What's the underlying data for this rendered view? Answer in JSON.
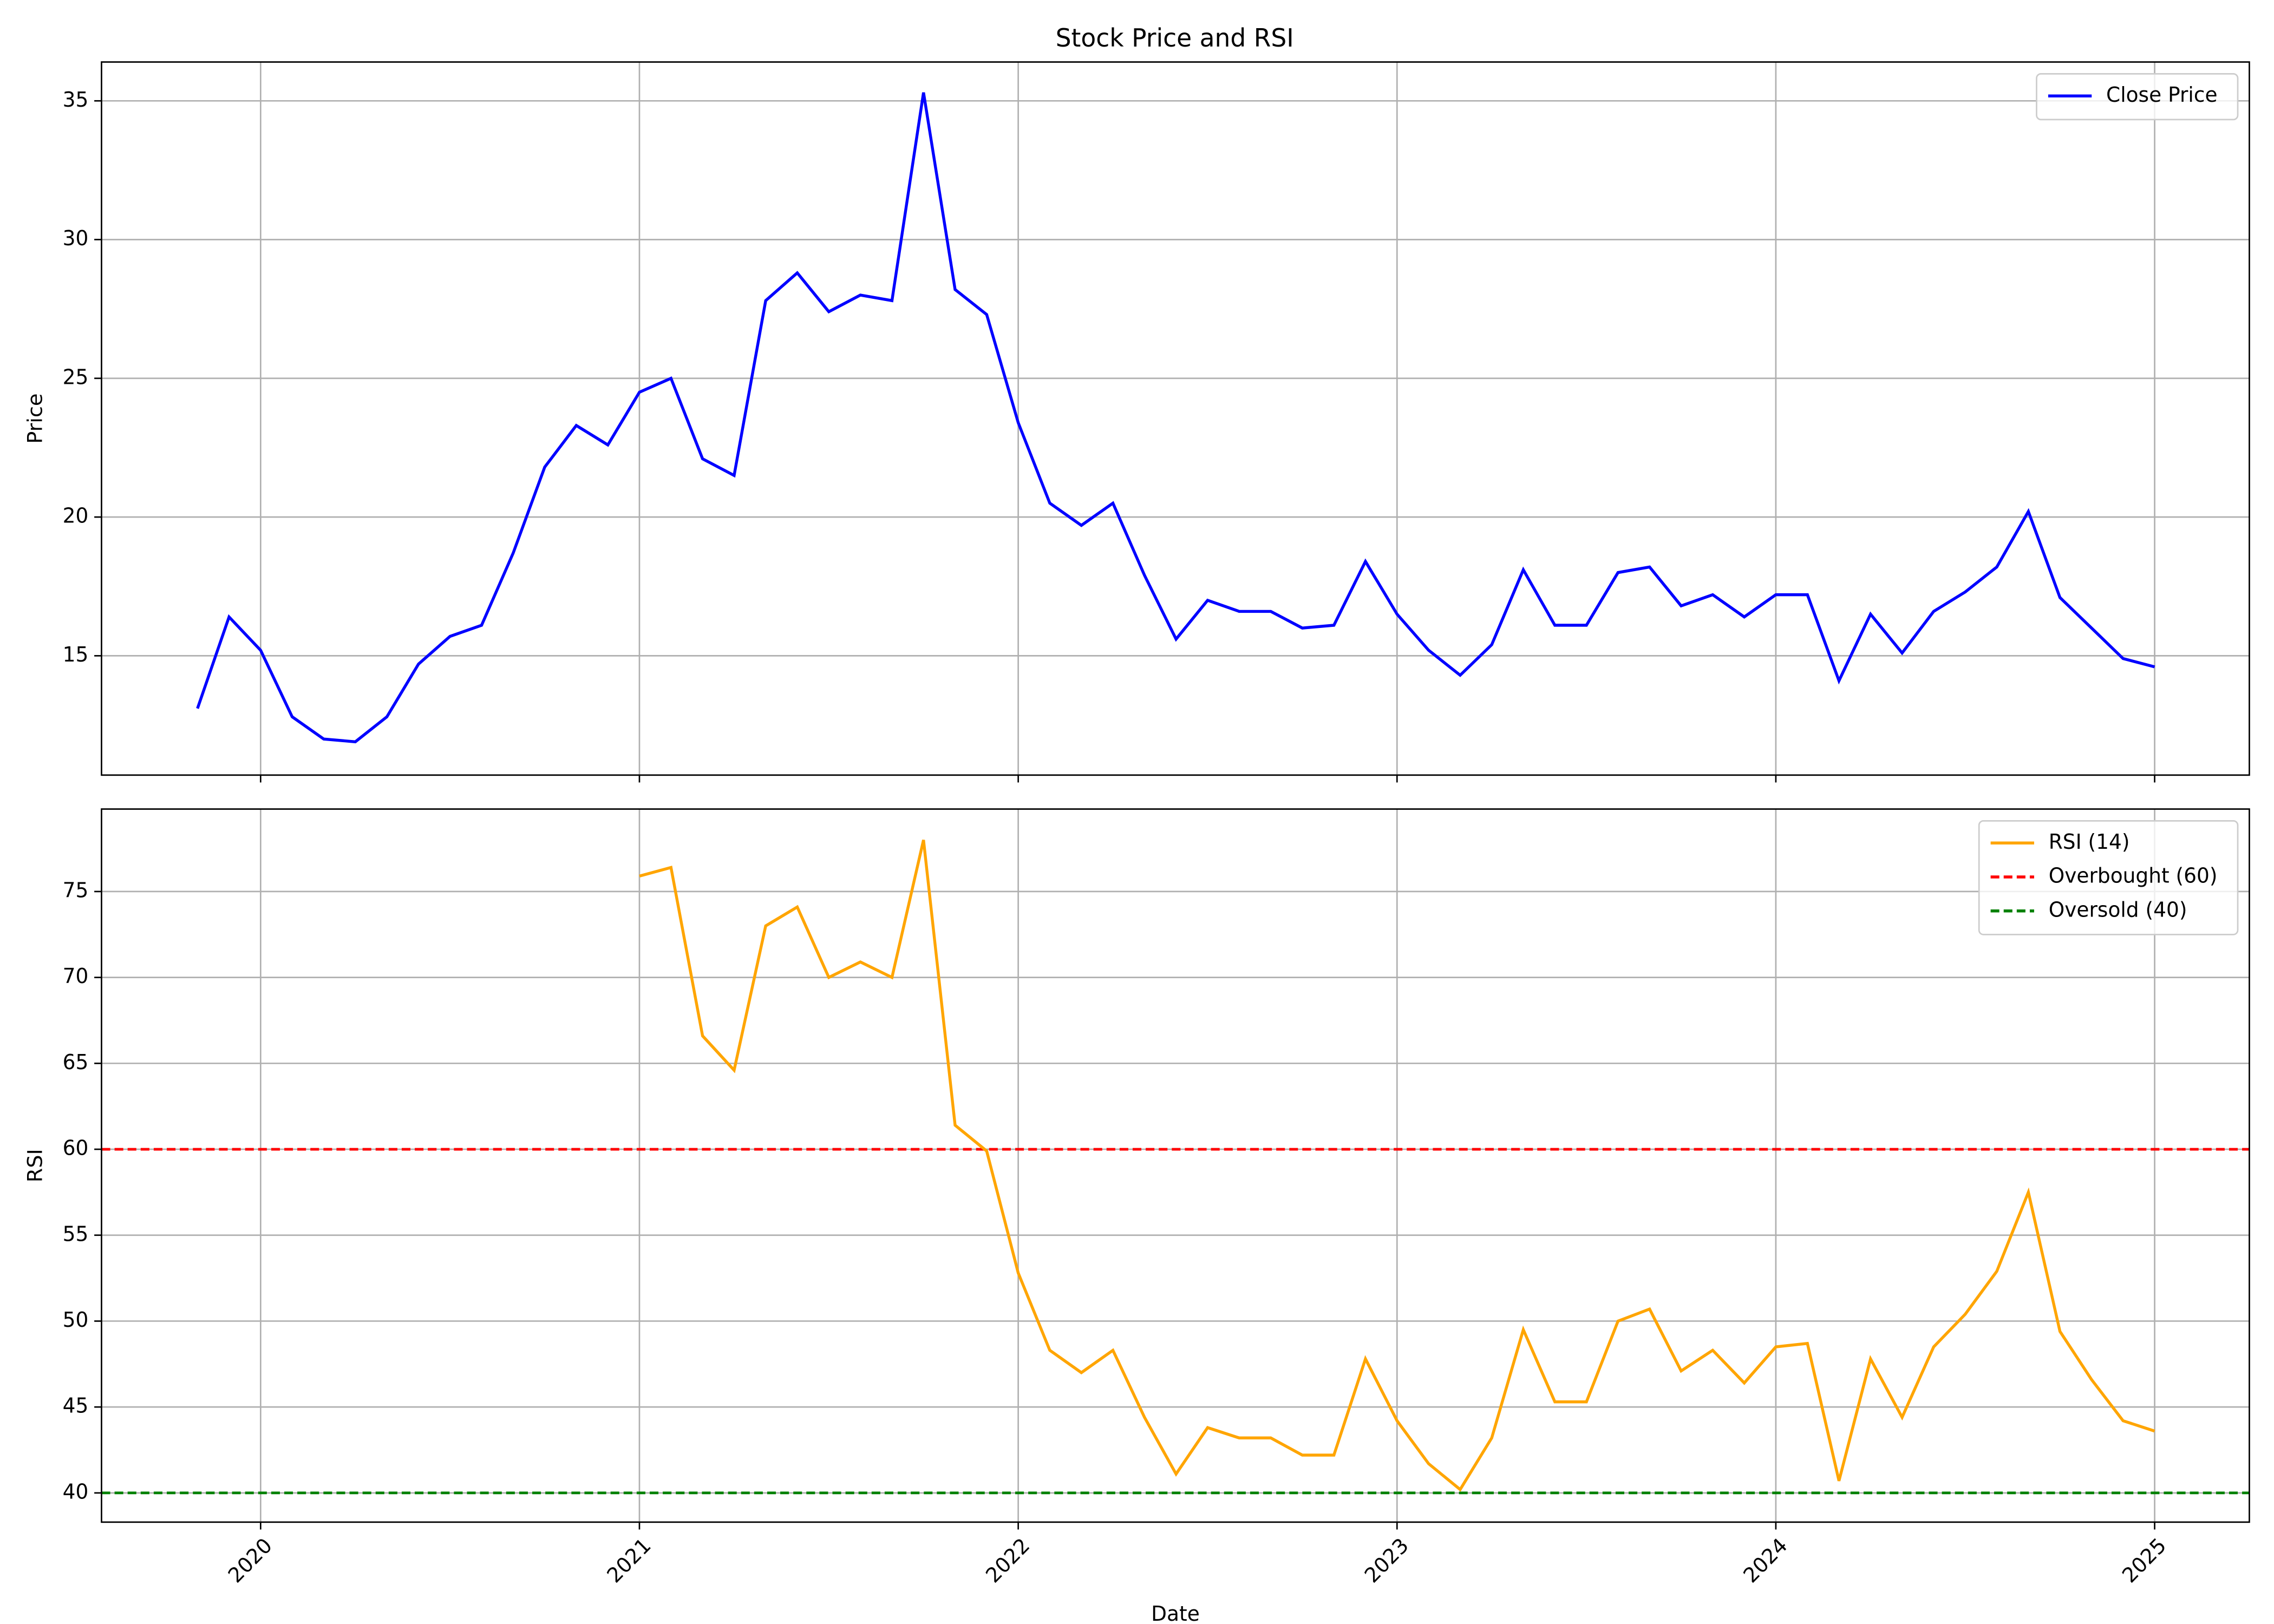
{
  "title": "Stock Price and RSI",
  "chart_data": [
    {
      "type": "line",
      "ylabel": "Price",
      "grid": true,
      "legend": "upper right",
      "x": [
        "2019-10",
        "2019-11",
        "2019-12",
        "2020-01",
        "2020-02",
        "2020-03",
        "2020-04",
        "2020-05",
        "2020-06",
        "2020-07",
        "2020-08",
        "2020-09",
        "2020-10",
        "2020-11",
        "2020-12",
        "2021-01",
        "2021-02",
        "2021-03",
        "2021-04",
        "2021-05",
        "2021-06",
        "2021-07",
        "2021-08",
        "2021-09",
        "2021-10",
        "2021-11",
        "2021-12",
        "2022-01",
        "2022-02",
        "2022-03",
        "2022-04",
        "2022-05",
        "2022-06",
        "2022-07",
        "2022-08",
        "2022-09",
        "2022-10",
        "2022-11",
        "2022-12",
        "2023-01",
        "2023-02",
        "2023-03",
        "2023-04",
        "2023-05",
        "2023-06",
        "2023-07",
        "2023-08",
        "2023-09",
        "2023-10",
        "2023-11",
        "2023-12",
        "2024-01",
        "2024-02",
        "2024-03",
        "2024-04",
        "2024-05",
        "2024-06",
        "2024-07",
        "2024-08",
        "2024-09",
        "2024-10",
        "2024-11",
        "2024-12"
      ],
      "series": [
        {
          "name": "Close Price",
          "color": "blue",
          "values": [
            13.1,
            16.4,
            15.2,
            12.8,
            12.0,
            11.9,
            12.8,
            14.7,
            15.7,
            16.1,
            18.7,
            21.8,
            23.3,
            22.6,
            24.5,
            25.0,
            22.1,
            21.5,
            27.8,
            28.8,
            27.4,
            28.0,
            27.8,
            35.3,
            28.2,
            27.3,
            23.4,
            20.5,
            19.7,
            20.5,
            17.9,
            15.6,
            17.0,
            16.6,
            16.6,
            16.0,
            16.1,
            18.4,
            16.5,
            15.2,
            14.3,
            15.4,
            18.1,
            16.1,
            16.1,
            18.0,
            18.2,
            16.8,
            17.2,
            16.4,
            17.2,
            17.2,
            14.1,
            16.5,
            15.1,
            16.6,
            17.3,
            18.2,
            20.2,
            17.1,
            16.0,
            14.9,
            14.6
          ]
        }
      ],
      "xlim": [
        2019.58,
        2025.25
      ],
      "xticks": [
        2020,
        2021,
        2022,
        2023,
        2024,
        2025
      ],
      "ylim": [
        10.7,
        36.4
      ],
      "yticks": [
        15,
        20,
        25,
        30,
        35
      ]
    },
    {
      "type": "line",
      "ylabel": "RSI",
      "xlabel": "Date",
      "grid": true,
      "legend": "upper right",
      "x": [
        "2019-10",
        "2019-11",
        "2019-12",
        "2020-01",
        "2020-02",
        "2020-03",
        "2020-04",
        "2020-05",
        "2020-06",
        "2020-07",
        "2020-08",
        "2020-09",
        "2020-10",
        "2020-11",
        "2020-12",
        "2021-01",
        "2021-02",
        "2021-03",
        "2021-04",
        "2021-05",
        "2021-06",
        "2021-07",
        "2021-08",
        "2021-09",
        "2021-10",
        "2021-11",
        "2021-12",
        "2022-01",
        "2022-02",
        "2022-03",
        "2022-04",
        "2022-05",
        "2022-06",
        "2022-07",
        "2022-08",
        "2022-09",
        "2022-10",
        "2022-11",
        "2022-12",
        "2023-01",
        "2023-02",
        "2023-03",
        "2023-04",
        "2023-05",
        "2023-06",
        "2023-07",
        "2023-08",
        "2023-09",
        "2023-10",
        "2023-11",
        "2023-12",
        "2024-01",
        "2024-02",
        "2024-03",
        "2024-04",
        "2024-05",
        "2024-06",
        "2024-07",
        "2024-08",
        "2024-09",
        "2024-10",
        "2024-11",
        "2024-12"
      ],
      "series": [
        {
          "name": "RSI (14)",
          "color": "orange",
          "values": [
            null,
            null,
            null,
            null,
            null,
            null,
            null,
            null,
            null,
            null,
            null,
            null,
            null,
            null,
            75.9,
            76.4,
            66.6,
            64.6,
            73.0,
            74.1,
            70.0,
            70.9,
            70.0,
            78.0,
            61.4,
            59.9,
            52.8,
            48.3,
            47.0,
            48.3,
            44.4,
            41.1,
            43.8,
            43.2,
            43.2,
            42.2,
            42.2,
            47.8,
            44.2,
            41.7,
            40.2,
            43.2,
            49.5,
            45.3,
            45.3,
            50.0,
            50.7,
            47.1,
            48.3,
            46.4,
            48.5,
            48.7,
            40.7,
            47.8,
            44.4,
            48.5,
            50.4,
            52.9,
            57.5,
            49.4,
            46.6,
            44.2,
            43.6
          ]
        }
      ],
      "hlines": [
        {
          "name": "Overbought (60)",
          "color": "red",
          "value": 60
        },
        {
          "name": "Oversold (40)",
          "color": "green",
          "value": 40
        }
      ],
      "xlim": [
        2019.58,
        2025.25
      ],
      "xticks": [
        2020,
        2021,
        2022,
        2023,
        2024,
        2025
      ],
      "ylim": [
        38.3,
        79.8
      ],
      "yticks": [
        40,
        45,
        50,
        55,
        60,
        65,
        70,
        75
      ]
    }
  ]
}
